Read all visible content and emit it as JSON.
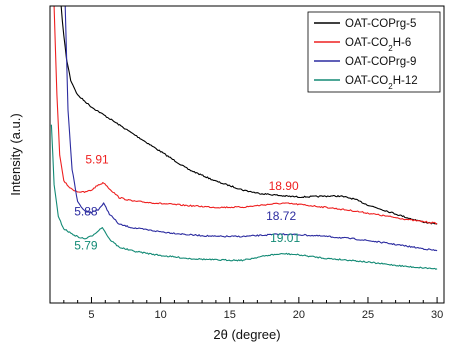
{
  "chart_data": {
    "type": "line",
    "xlabel": "2θ (degree)",
    "ylabel": "Intensity (a.u.)",
    "xlim": [
      2,
      30.5
    ],
    "ylim": [
      0,
      100
    ],
    "x_ticks": [
      5,
      10,
      15,
      20,
      25,
      30
    ],
    "y_ticks_labeled": false,
    "grid": false,
    "legend": "top-right",
    "series": [
      {
        "name": "OAT-COPrg-5",
        "color": "#000000",
        "points": [
          [
            2.8,
            100
          ],
          [
            3.0,
            90
          ],
          [
            3.2,
            82
          ],
          [
            3.5,
            75
          ],
          [
            4.0,
            70
          ],
          [
            5,
            66
          ],
          [
            6,
            63
          ],
          [
            8,
            57
          ],
          [
            10,
            51
          ],
          [
            12,
            45
          ],
          [
            14,
            41
          ],
          [
            16,
            38
          ],
          [
            17,
            37
          ],
          [
            18,
            36.5
          ],
          [
            19,
            36
          ],
          [
            20,
            35.7
          ],
          [
            21,
            35.8
          ],
          [
            22,
            36
          ],
          [
            23,
            36
          ],
          [
            24,
            35
          ],
          [
            25,
            33
          ],
          [
            26,
            31.5
          ],
          [
            27,
            30
          ],
          [
            28,
            28.5
          ],
          [
            29,
            27.3
          ],
          [
            30,
            26.5
          ]
        ]
      },
      {
        "name": "OAT-CO2H-6",
        "color": "#ee2020",
        "points": [
          [
            2.3,
            100
          ],
          [
            2.5,
            70
          ],
          [
            2.7,
            50
          ],
          [
            3.0,
            41
          ],
          [
            3.5,
            38.5
          ],
          [
            4.0,
            37.5
          ],
          [
            4.5,
            37.3
          ],
          [
            5.0,
            38
          ],
          [
            5.5,
            39.8
          ],
          [
            5.9,
            40.5
          ],
          [
            6.3,
            38.5
          ],
          [
            7.0,
            35.5
          ],
          [
            8,
            34.3
          ],
          [
            10,
            33.5
          ],
          [
            12,
            32.8
          ],
          [
            14,
            32.2
          ],
          [
            16,
            32.3
          ],
          [
            17,
            32.8
          ],
          [
            18,
            33.3
          ],
          [
            18.9,
            33.6
          ],
          [
            20,
            33.2
          ],
          [
            22,
            32.2
          ],
          [
            24,
            31
          ],
          [
            26,
            29.5
          ],
          [
            28,
            28
          ],
          [
            30,
            26.8
          ]
        ]
      },
      {
        "name": "OAT-COPrg-9",
        "color": "#2c2ca0",
        "points": [
          [
            3.1,
            100
          ],
          [
            3.3,
            65
          ],
          [
            3.6,
            45
          ],
          [
            4.0,
            34
          ],
          [
            4.5,
            31
          ],
          [
            5.0,
            30.5
          ],
          [
            5.5,
            31.5
          ],
          [
            5.88,
            33.5
          ],
          [
            6.3,
            30
          ],
          [
            7.0,
            26.5
          ],
          [
            8,
            25.3
          ],
          [
            10,
            24
          ],
          [
            12,
            23
          ],
          [
            14,
            22.4
          ],
          [
            16,
            22.4
          ],
          [
            17,
            22.7
          ],
          [
            18,
            23
          ],
          [
            18.72,
            23.2
          ],
          [
            20,
            23
          ],
          [
            22,
            22.4
          ],
          [
            24,
            21.6
          ],
          [
            26,
            20.4
          ],
          [
            28,
            19
          ],
          [
            30,
            17.6
          ]
        ]
      },
      {
        "name": "OAT-CO2H-12",
        "color": "#138a75",
        "points": [
          [
            2.1,
            60
          ],
          [
            2.3,
            40
          ],
          [
            2.6,
            29
          ],
          [
            3.0,
            25
          ],
          [
            3.5,
            23.5
          ],
          [
            4.0,
            22.3
          ],
          [
            4.5,
            21.6
          ],
          [
            5.0,
            22.5
          ],
          [
            5.79,
            25.5
          ],
          [
            6.3,
            21.5
          ],
          [
            7.0,
            18.8
          ],
          [
            8,
            17.5
          ],
          [
            10,
            16
          ],
          [
            12,
            15
          ],
          [
            14,
            14.5
          ],
          [
            16,
            14.4
          ],
          [
            17,
            15.4
          ],
          [
            18,
            16.2
          ],
          [
            19.01,
            16.6
          ],
          [
            20,
            16.2
          ],
          [
            22,
            15
          ],
          [
            24,
            14.3
          ],
          [
            26,
            13.2
          ],
          [
            28,
            12.2
          ],
          [
            30,
            11.5
          ]
        ]
      }
    ],
    "legend_entries": [
      {
        "color": "#000000",
        "parts": [
          {
            "t": "OAT-COPrg-5",
            "sub": false
          }
        ]
      },
      {
        "color": "#ee2020",
        "parts": [
          {
            "t": "OAT-CO",
            "sub": false
          },
          {
            "t": "2",
            "sub": true
          },
          {
            "t": "H-6",
            "sub": false
          }
        ]
      },
      {
        "color": "#2c2ca0",
        "parts": [
          {
            "t": "OAT-COPrg-9",
            "sub": false
          }
        ]
      },
      {
        "color": "#138a75",
        "parts": [
          {
            "t": "OAT-CO",
            "sub": false
          },
          {
            "t": "2",
            "sub": true
          },
          {
            "t": "H-12",
            "sub": false
          }
        ]
      }
    ],
    "annotations": [
      {
        "text": "5.91",
        "x": 5.4,
        "y": 47,
        "color": "#ee2020"
      },
      {
        "text": "18.90",
        "x": 18.9,
        "y": 38,
        "color": "#ee2020"
      },
      {
        "text": "5.88",
        "x": 4.6,
        "y": 29.5,
        "color": "#2c2ca0"
      },
      {
        "text": "18.72",
        "x": 18.72,
        "y": 28,
        "color": "#2c2ca0"
      },
      {
        "text": "5.79",
        "x": 4.6,
        "y": 18,
        "color": "#138a75"
      },
      {
        "text": "19.01",
        "x": 19.01,
        "y": 20.5,
        "color": "#138a75"
      }
    ]
  }
}
